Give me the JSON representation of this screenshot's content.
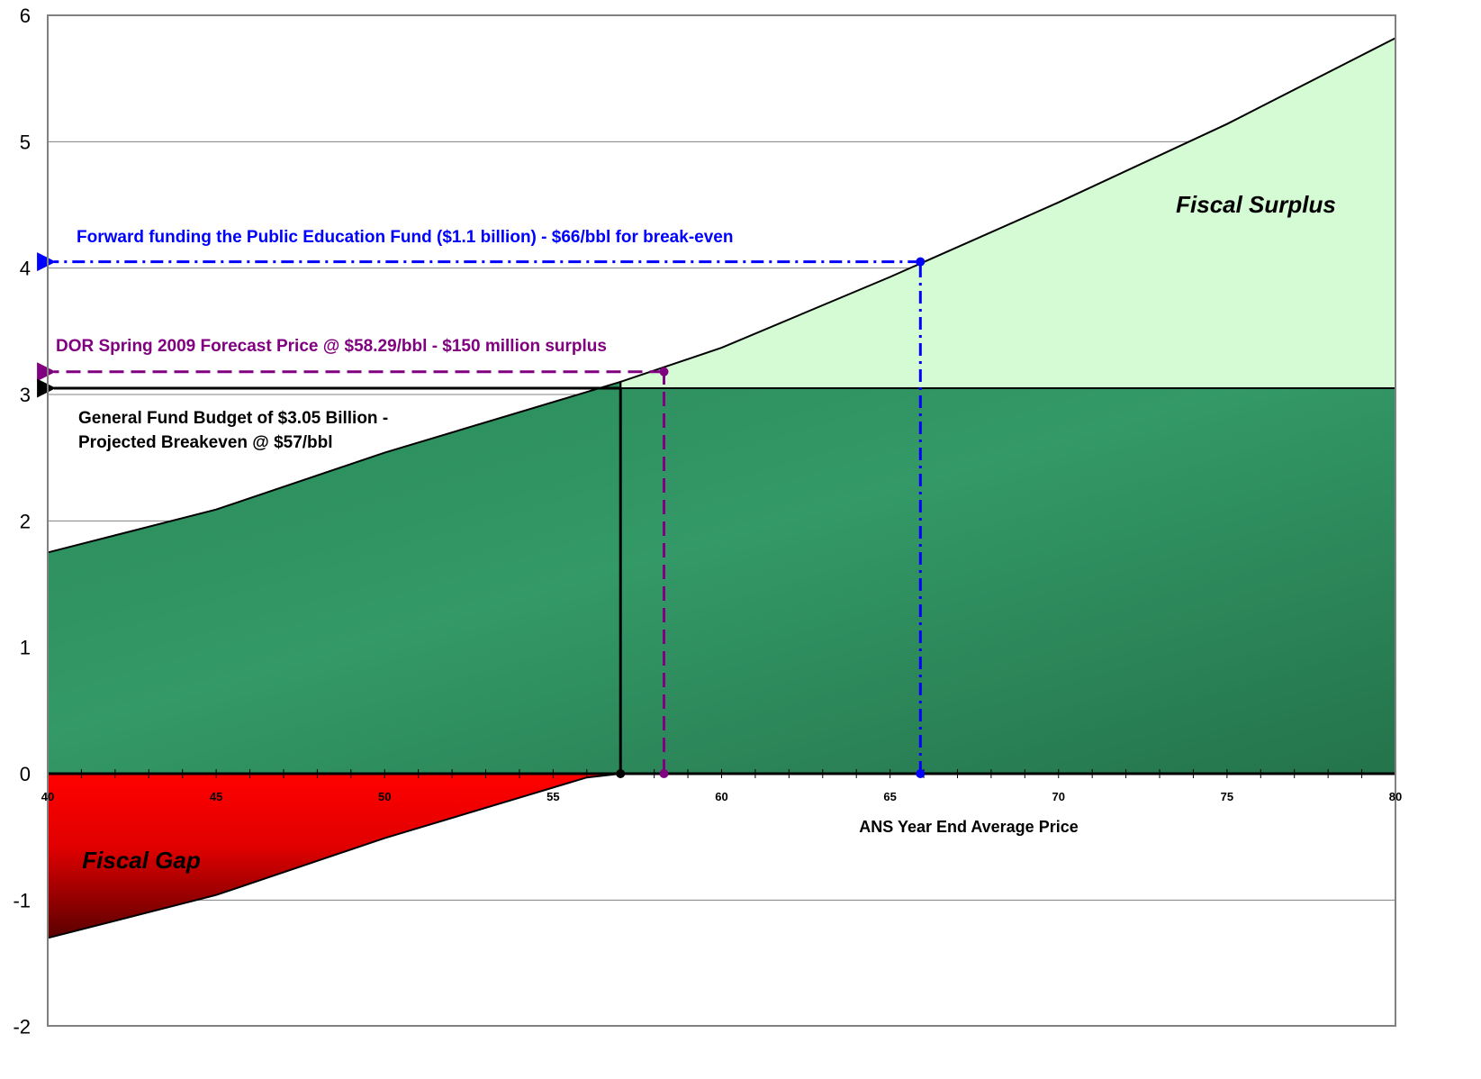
{
  "chart_data": {
    "type": "area",
    "xlabel": "ANS Year End Average Price",
    "ylabel": "",
    "xlim": [
      40,
      80
    ],
    "ylim": [
      -2,
      6
    ],
    "x_ticks": [
      "40",
      "45",
      "50",
      "55",
      "60",
      "65",
      "70",
      "75",
      "80"
    ],
    "y_ticks": [
      "-2",
      "-1",
      "0",
      "1",
      "2",
      "3",
      "4",
      "5",
      "6"
    ],
    "grid": "horizontal",
    "series": [
      {
        "kind": "revenue",
        "x": [
          40,
          45,
          50,
          56,
          57,
          60,
          65,
          70,
          75,
          80
        ],
        "y": [
          1.75,
          2.09,
          2.54,
          3.02,
          3.1,
          3.37,
          3.93,
          4.52,
          5.14,
          5.82
        ]
      },
      {
        "kind": "budget",
        "x": [
          40,
          80
        ],
        "y": [
          3.05,
          3.05
        ]
      }
    ],
    "regions": {
      "surplus_label": "Fiscal Surplus",
      "gap_label": "Fiscal Gap"
    },
    "annotations": [
      {
        "id": "education",
        "text": "Forward funding the Public Education Fund ($1.1 billion) - $66/bbl for break-even",
        "color": "#0000FF",
        "x": 65.9,
        "y": 4.05,
        "style": "dashdot"
      },
      {
        "id": "forecast",
        "text": "DOR Spring 2009 Forecast Price @ $58.29/bbl - $150 million surplus",
        "color": "#800080",
        "x": 58.29,
        "y": 3.18,
        "style": "dashed"
      },
      {
        "id": "budget",
        "text_line1": "General Fund Budget of $3.05 Billion -",
        "text_line2": "Projected Breakeven @ $57/bbl",
        "color": "#000000",
        "x": 57,
        "y": 3.05,
        "style": "solid"
      }
    ],
    "colors": {
      "surplus_fill": "#D4FBD4",
      "revenue_fill": "#339966",
      "gap_fill": "#FF0000",
      "gridline": "#808080"
    }
  }
}
